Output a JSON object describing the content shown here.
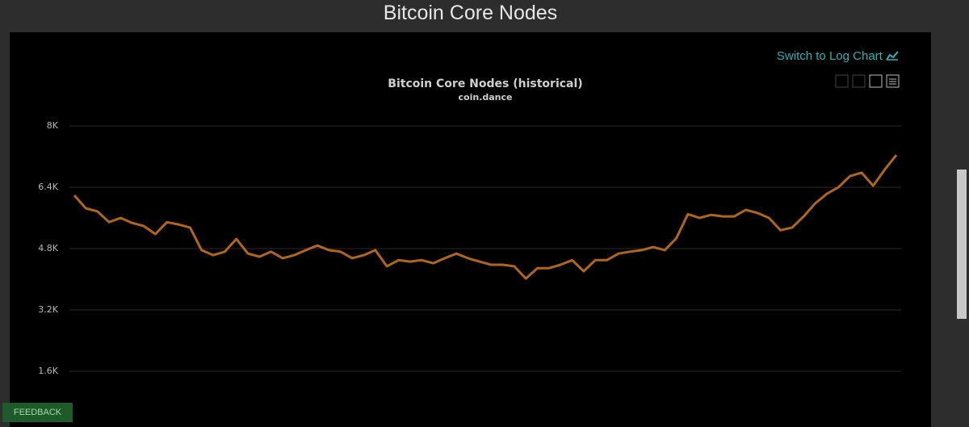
{
  "page": {
    "heading": "Bitcoin Core Nodes",
    "switch_link": "Switch to Log Chart",
    "feedback": "FEEDBACK"
  },
  "chart_data": {
    "type": "line",
    "title": "Bitcoin Core Nodes (historical)",
    "subtitle": "coin.dance",
    "color": "#b0661c",
    "grid": true,
    "ylim": [
      0,
      8000
    ],
    "yticks": [
      {
        "value": 1600,
        "label": "1.6K"
      },
      {
        "value": 3200,
        "label": "3.2K"
      },
      {
        "value": 4800,
        "label": "4.8K"
      },
      {
        "value": 6400,
        "label": "6.4K"
      },
      {
        "value": 8000,
        "label": "8K"
      }
    ],
    "values": [
      6190,
      5850,
      5770,
      5490,
      5600,
      5470,
      5390,
      5180,
      5490,
      5430,
      5350,
      4760,
      4630,
      4720,
      5050,
      4670,
      4590,
      4720,
      4550,
      4630,
      4760,
      4880,
      4760,
      4720,
      4550,
      4630,
      4760,
      4340,
      4500,
      4460,
      4500,
      4420,
      4550,
      4670,
      4550,
      4460,
      4380,
      4380,
      4340,
      4020,
      4290,
      4290,
      4380,
      4500,
      4210,
      4500,
      4500,
      4670,
      4720,
      4760,
      4840,
      4760,
      5070,
      5700,
      5600,
      5680,
      5640,
      5640,
      5810,
      5730,
      5600,
      5280,
      5350,
      5640,
      5980,
      6230,
      6400,
      6690,
      6780,
      6440,
      6860,
      7240
    ]
  }
}
